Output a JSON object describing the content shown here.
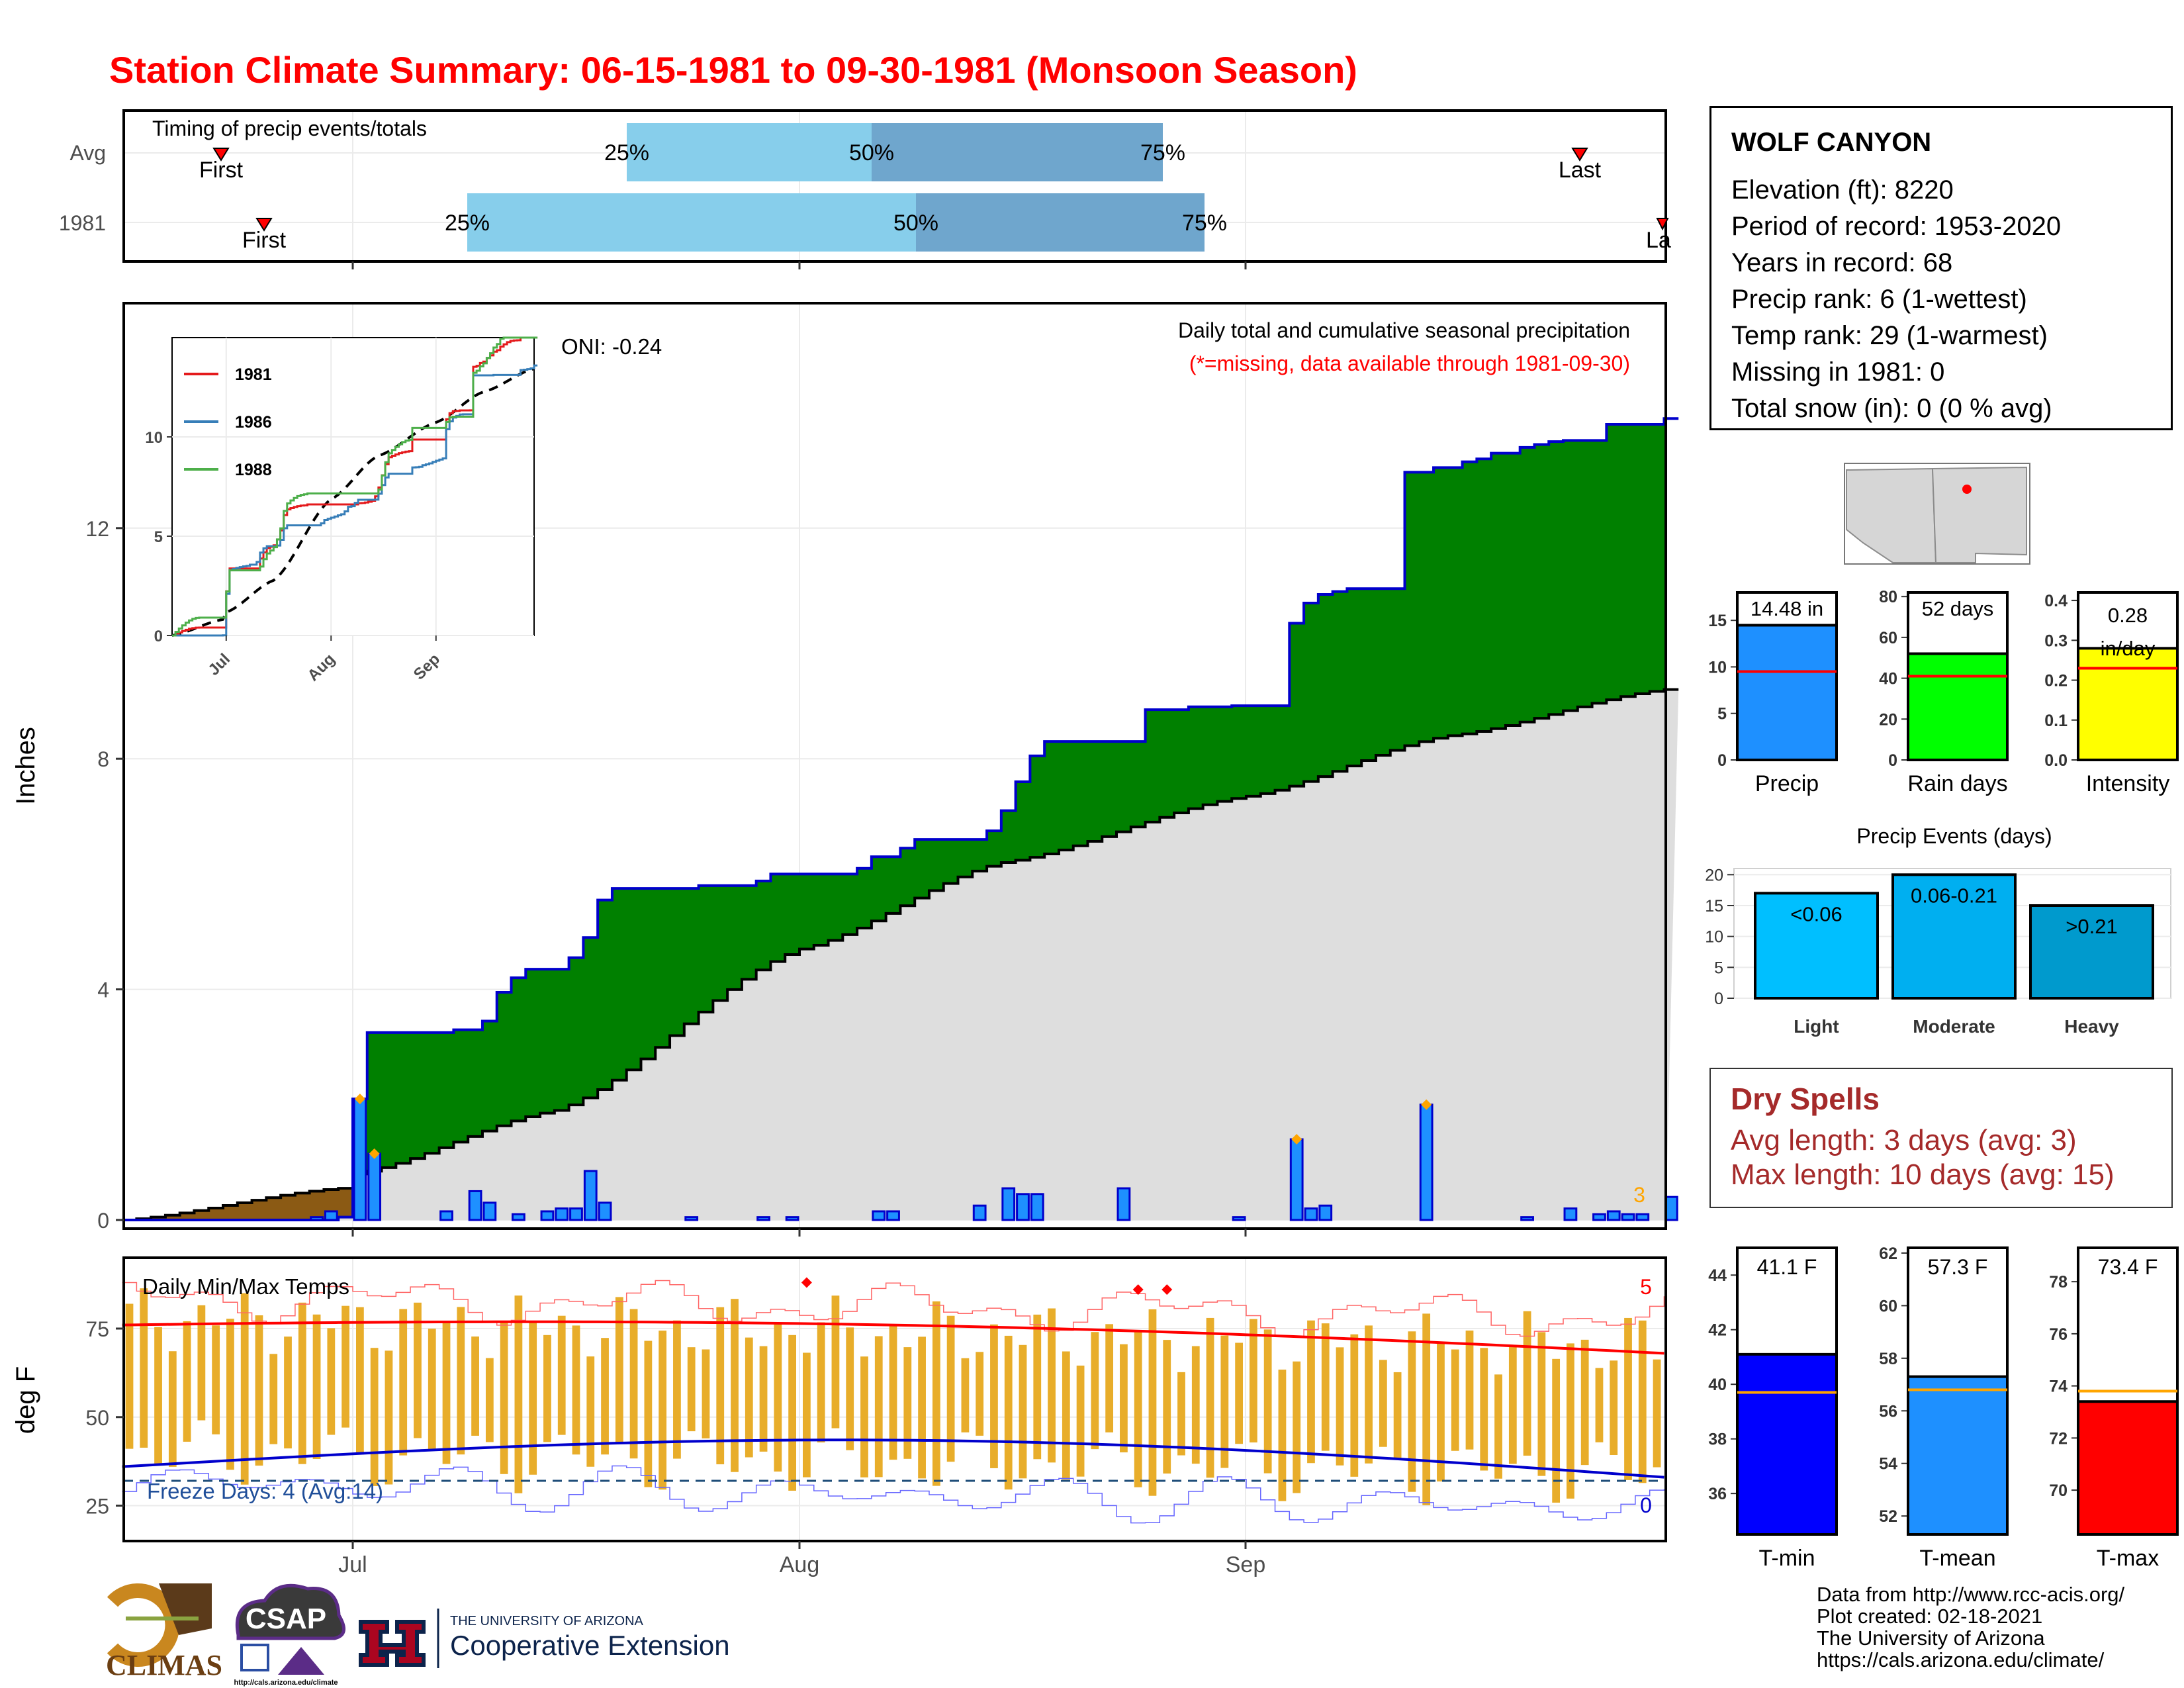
{
  "title": "Station Climate Summary: 06-15-1981 to 09-30-1981 (Monsoon Season)",
  "colors": {
    "title": "#ff0000",
    "green_fill": "#008000",
    "normal_fill": "#dedede",
    "brown_fill": "#8b5a14",
    "bar_blue": "#1e90ff",
    "line_blue": "#0000cc",
    "tmax": "#ff0000",
    "tmin": "#0000cc",
    "temp_bar": "#e8ad2a",
    "light_blue": "#87ceeb",
    "mid_blue": "#6fa6cd"
  },
  "timing": {
    "label": "Timing of precip events/totals",
    "rows": [
      {
        "label": "Avg",
        "first": "First",
        "last": "Last",
        "q25": "25%",
        "q50": "50%",
        "q75": "75%"
      },
      {
        "label": "1981",
        "first": "First",
        "last": "La",
        "q25": "25%",
        "q50": "50%",
        "q75": "75%"
      }
    ]
  },
  "precip_panel": {
    "ylabel": "Inches",
    "oni": "ONI: -0.24",
    "caption1": "Daily total and cumulative seasonal precipitation",
    "caption2": "(*=missing, data available through 1981-09-30)",
    "corner_count": "3",
    "y_ticks": [
      "0",
      "4",
      "8",
      "12"
    ],
    "x_ticks": [
      "Jul",
      "Aug",
      "Sep"
    ]
  },
  "inset": {
    "series": [
      {
        "name": "1981",
        "color": "#e41a1c"
      },
      {
        "name": "1986",
        "color": "#377eb8"
      },
      {
        "name": "1988",
        "color": "#4daf4a"
      }
    ],
    "y_ticks": [
      "0",
      "5",
      "10"
    ],
    "x_ticks": [
      "Jul",
      "Aug",
      "Sep"
    ]
  },
  "temp_panel": {
    "ylabel": "deg F",
    "label": "Daily Min/Max Temps",
    "freeze": "Freeze Days: 4 (Avg:14)",
    "count_top": "5",
    "count_bottom": "0",
    "y_ticks": [
      "25",
      "50",
      "75"
    ],
    "x_ticks": [
      "Jul",
      "Aug",
      "Sep"
    ]
  },
  "station": {
    "name": "WOLF CANYON",
    "lines": [
      "Elevation (ft): 8220",
      "Period of record: 1953-2020",
      "Years in record: 68",
      "Precip rank: 6 (1-wettest)",
      "Temp rank: 29 (1-warmest)",
      "Missing in 1981: 0",
      "Total snow (in): 0 (0 % avg)"
    ]
  },
  "dry_spells": {
    "title": "Dry Spells",
    "avg": "Avg length: 3 days (avg: 3)",
    "max": "Max length: 10 days (avg: 15)"
  },
  "credits": {
    "line1": "Data from http://www.rcc-acis.org/",
    "line2": "Plot created: 02-18-2021",
    "line3": "The University of Arizona",
    "line4": "https://cals.arizona.edu/climate/"
  },
  "logos": {
    "climas": "CLIMAS",
    "csap": "CSAP",
    "csap_url": "http://cals.arizona.edu/climate",
    "ua_small": "THE UNIVERSITY OF ARIZONA",
    "ua_big": "Cooperative Extension"
  },
  "chart_data": [
    {
      "type": "area",
      "name": "cumulative_precip",
      "x_start": "1981-06-15",
      "x_end": "1981-09-30",
      "ylim": [
        0,
        14.5
      ],
      "cumulative_1981_steps": [
        [
          "06-15",
          0.0
        ],
        [
          "06-30",
          0.05
        ],
        [
          "07-01",
          2.1
        ],
        [
          "07-02",
          3.25
        ],
        [
          "07-08",
          3.3
        ],
        [
          "07-10",
          3.45
        ],
        [
          "07-11",
          3.95
        ],
        [
          "07-12",
          4.2
        ],
        [
          "07-13",
          4.35
        ],
        [
          "07-16",
          4.55
        ],
        [
          "07-17",
          4.9
        ],
        [
          "07-18",
          5.55
        ],
        [
          "07-19",
          5.75
        ],
        [
          "07-25",
          5.8
        ],
        [
          "07-29",
          5.88
        ],
        [
          "07-30",
          6.0
        ],
        [
          "08-05",
          6.1
        ],
        [
          "08-06",
          6.3
        ],
        [
          "08-08",
          6.45
        ],
        [
          "08-09",
          6.6
        ],
        [
          "08-14",
          6.75
        ],
        [
          "08-15",
          7.1
        ],
        [
          "08-16",
          7.6
        ],
        [
          "08-17",
          8.05
        ],
        [
          "08-18",
          8.3
        ],
        [
          "08-25",
          8.85
        ],
        [
          "08-28",
          8.9
        ],
        [
          "08-31",
          8.92
        ],
        [
          "09-04",
          10.35
        ],
        [
          "09-05",
          10.7
        ],
        [
          "09-06",
          10.85
        ],
        [
          "09-07",
          10.9
        ],
        [
          "09-08",
          10.95
        ],
        [
          "09-12",
          12.97
        ],
        [
          "09-14",
          13.05
        ],
        [
          "09-16",
          13.15
        ],
        [
          "09-17",
          13.2
        ],
        [
          "09-18",
          13.3
        ],
        [
          "09-20",
          13.4
        ],
        [
          "09-21",
          13.45
        ],
        [
          "09-22",
          13.5
        ],
        [
          "09-23",
          13.52
        ],
        [
          "09-26",
          13.8
        ],
        [
          "09-30",
          13.9
        ]
      ],
      "normal_cumulative": [
        [
          "06-15",
          0.0
        ],
        [
          "06-30",
          0.55
        ],
        [
          "07-01",
          0.8
        ],
        [
          "07-15",
          1.9
        ],
        [
          "08-01",
          4.7
        ],
        [
          "08-15",
          6.2
        ],
        [
          "09-01",
          7.35
        ],
        [
          "09-15",
          8.4
        ],
        [
          "09-30",
          9.2
        ]
      ],
      "daily_bars_1981": [
        [
          "06-28",
          0.05
        ],
        [
          "06-29",
          0.15
        ],
        [
          "07-01",
          2.1
        ],
        [
          "07-02",
          1.15
        ],
        [
          "07-07",
          0.15
        ],
        [
          "07-09",
          0.5
        ],
        [
          "07-10",
          0.3
        ],
        [
          "07-12",
          0.1
        ],
        [
          "07-14",
          0.15
        ],
        [
          "07-15",
          0.2
        ],
        [
          "07-16",
          0.2
        ],
        [
          "07-17",
          0.85
        ],
        [
          "07-18",
          0.3
        ],
        [
          "07-24",
          0.05
        ],
        [
          "07-29",
          0.05
        ],
        [
          "07-31",
          0.05
        ],
        [
          "08-06",
          0.15
        ],
        [
          "08-07",
          0.15
        ],
        [
          "08-13",
          0.25
        ],
        [
          "08-15",
          0.55
        ],
        [
          "08-16",
          0.45
        ],
        [
          "08-17",
          0.45
        ],
        [
          "08-23",
          0.55
        ],
        [
          "08-31",
          0.05
        ],
        [
          "09-04",
          1.4
        ],
        [
          "09-05",
          0.2
        ],
        [
          "09-06",
          0.25
        ],
        [
          "09-13",
          2.0
        ],
        [
          "09-20",
          0.05
        ],
        [
          "09-23",
          0.2
        ],
        [
          "09-25",
          0.1
        ],
        [
          "09-26",
          0.15
        ],
        [
          "09-27",
          0.1
        ],
        [
          "09-28",
          0.1
        ],
        [
          "09-30",
          0.4
        ]
      ]
    },
    {
      "type": "line",
      "name": "inset_cumulative_comparison",
      "ylim": [
        0,
        15
      ],
      "x_ticks": [
        "Jul",
        "Aug",
        "Sep"
      ],
      "series_names": [
        "1981",
        "1986",
        "1988"
      ]
    },
    {
      "type": "bar",
      "name": "season_totals",
      "categories": [
        "Precip",
        "Rain days",
        "Intensity"
      ],
      "values": [
        14.48,
        52,
        0.28
      ],
      "labels": [
        "14.48 in",
        "52 days",
        "0.28 in/day"
      ],
      "averages": [
        9.5,
        41,
        0.23
      ],
      "ylims": [
        [
          0,
          18
        ],
        [
          0,
          82
        ],
        [
          0,
          0.42
        ]
      ],
      "y_ticks": [
        [
          "0",
          "5",
          "10",
          "15"
        ],
        [
          "0",
          "20",
          "40",
          "60",
          "80"
        ],
        [
          "0.0",
          "0.1",
          "0.2",
          "0.3",
          "0.4"
        ]
      ],
      "colors": [
        "#1e90ff",
        "#00ff00",
        "#ffff00"
      ]
    },
    {
      "type": "bar",
      "name": "precip_events",
      "title": "Precip Events (days)",
      "categories": [
        "Light",
        "Moderate",
        "Heavy"
      ],
      "values": [
        17,
        20,
        15
      ],
      "labels": [
        "<0.06",
        "0.06-0.21",
        ">0.21"
      ],
      "ylim": [
        0,
        21
      ],
      "y_ticks": [
        "0",
        "5",
        "10",
        "15",
        "20"
      ],
      "colors": [
        "#00bfff",
        "#00aff0",
        "#009acd"
      ]
    },
    {
      "type": "bar",
      "name": "temperatures",
      "categories": [
        "T-min",
        "T-mean",
        "T-max"
      ],
      "values": [
        41.1,
        57.3,
        73.4
      ],
      "labels": [
        "41.1 F",
        "57.3 F",
        "73.4 F"
      ],
      "averages": [
        39.7,
        56.8,
        73.8
      ],
      "ylims": [
        [
          34.5,
          45
        ],
        [
          51.3,
          62.2
        ],
        [
          68.3,
          79.3
        ]
      ],
      "y_ticks": [
        [
          "36",
          "38",
          "40",
          "42",
          "44"
        ],
        [
          "52",
          "54",
          "56",
          "58",
          "60",
          "62"
        ],
        [
          "70",
          "72",
          "74",
          "76",
          "78"
        ]
      ],
      "colors": [
        "#0000ff",
        "#1e90ff",
        "#ff0000"
      ]
    },
    {
      "type": "line",
      "name": "daily_temps",
      "ylim": [
        15,
        95
      ],
      "freeze_line": 32,
      "x_start": "1981-06-15",
      "x_end": "1981-09-30"
    }
  ]
}
